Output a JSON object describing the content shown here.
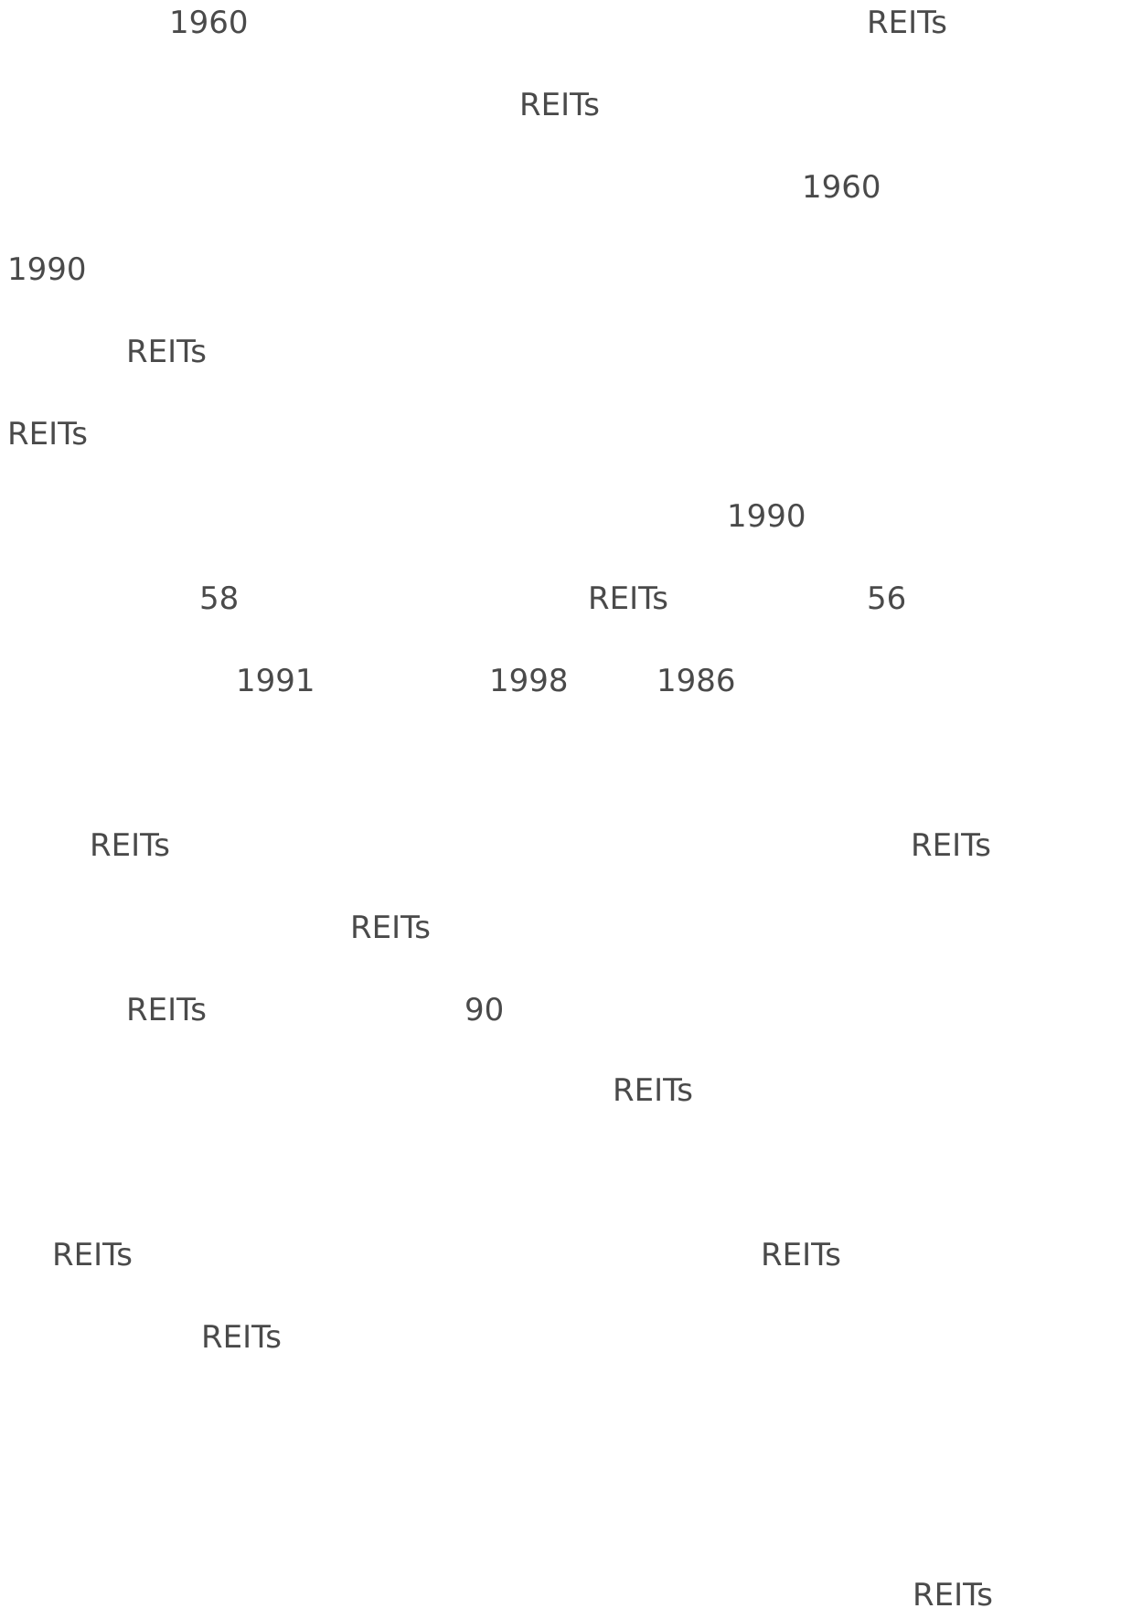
{
  "lines": [
    [
      "1960",
      "REITs"
    ],
    [
      "REITs"
    ],
    [
      "1960"
    ],
    [
      "1990"
    ],
    [
      "REITs"
    ],
    [
      "REITs"
    ],
    [
      "1990"
    ],
    [
      "58",
      "REITs",
      "56"
    ],
    [
      "1991",
      "1998",
      "1986"
    ],
    [
      "REITs",
      "REITs"
    ],
    [
      "REITs"
    ],
    [
      "REITs",
      "90"
    ],
    [
      "REITs"
    ],
    [
      "REITs",
      "REITs"
    ],
    [
      "REITs"
    ],
    [
      "REITs"
    ]
  ]
}
